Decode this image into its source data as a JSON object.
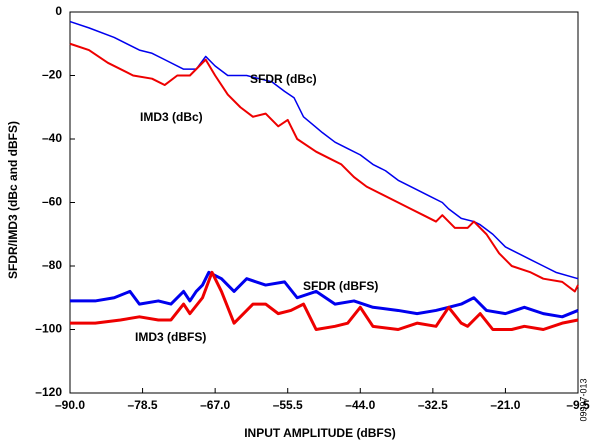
{
  "chart_data": {
    "type": "line",
    "xlabel": "INPUT AMPLITUDE (dBFS)",
    "ylabel": "SFDR/IMD3 (dBc and dBFS)",
    "figure_id": "09997-013",
    "xlim": [
      -90,
      -9.5
    ],
    "ylim": [
      -120,
      0
    ],
    "xticks": [
      {
        "value": -90,
        "label": "–90.0"
      },
      {
        "value": -78.5,
        "label": "–78.5"
      },
      {
        "value": -67,
        "label": "–67.0"
      },
      {
        "value": -55.5,
        "label": "–55.5"
      },
      {
        "value": -44,
        "label": "–44.0"
      },
      {
        "value": -32.5,
        "label": "–32.5"
      },
      {
        "value": -21,
        "label": "–21.0"
      },
      {
        "value": -9.5,
        "label": "–9.5"
      }
    ],
    "yticks": [
      {
        "value": -120,
        "label": "–120"
      },
      {
        "value": -100,
        "label": "–100"
      },
      {
        "value": -80,
        "label": "–80"
      },
      {
        "value": -60,
        "label": "–60"
      },
      {
        "value": -40,
        "label": "–40"
      },
      {
        "value": -20,
        "label": "–20"
      },
      0
    ],
    "grid": false,
    "series": [
      {
        "name": "SFDR (dBc)",
        "color": "#0000ee",
        "width": 1.5,
        "x": [
          -90,
          -87,
          -83,
          -79,
          -77,
          -75,
          -72,
          -70,
          -68.5,
          -67,
          -65,
          -62,
          -60,
          -58,
          -56,
          -54.5,
          -53,
          -50,
          -48,
          -46,
          -44,
          -42,
          -40,
          -38,
          -35,
          -33,
          -31,
          -30,
          -28,
          -26,
          -25,
          -23,
          -21,
          -19,
          -17,
          -15,
          -13,
          -9.5
        ],
        "values": [
          -3,
          -5,
          -8,
          -12,
          -13,
          -15,
          -18,
          -18,
          -14,
          -17,
          -20,
          -20,
          -21,
          -22,
          -25,
          -27,
          -33,
          -38,
          -41,
          -43,
          -45,
          -48,
          -50,
          -53,
          -56,
          -58,
          -60,
          -62,
          -65,
          -66,
          -67,
          -70,
          -74,
          -76,
          -78,
          -80,
          -82,
          -84
        ]
      },
      {
        "name": "IMD3 (dBc)",
        "color": "#ee0000",
        "width": 2,
        "x": [
          -90,
          -87,
          -84,
          -80,
          -77,
          -75,
          -73,
          -71,
          -68.5,
          -67,
          -65,
          -63,
          -61,
          -59,
          -57,
          -55.5,
          -54,
          -51,
          -49,
          -47,
          -45,
          -43,
          -41,
          -38,
          -36,
          -34,
          -32,
          -31,
          -29,
          -27,
          -26,
          -24,
          -22,
          -20,
          -17,
          -15,
          -12,
          -10,
          -9.5
        ],
        "values": [
          -10,
          -12,
          -16,
          -20,
          -21,
          -23,
          -20,
          -20,
          -15,
          -20,
          -26,
          -30,
          -33,
          -32,
          -36,
          -34,
          -40,
          -44,
          -46,
          -48,
          -52,
          -55,
          -57,
          -60,
          -62,
          -64,
          -66,
          -64,
          -68,
          -68,
          -66,
          -70,
          -76,
          -80,
          -82,
          -84,
          -85,
          -88,
          -86
        ]
      },
      {
        "name": "SFDR (dBFS)",
        "color": "#0000ee",
        "width": 3,
        "x": [
          -90,
          -86,
          -83,
          -80.5,
          -79,
          -76,
          -74,
          -72,
          -71,
          -70,
          -69,
          -68,
          -66,
          -64,
          -62,
          -59,
          -56,
          -54,
          -51,
          -48,
          -45,
          -42,
          -38,
          -35,
          -32,
          -30,
          -28,
          -26,
          -24,
          -21,
          -18,
          -15,
          -12,
          -9.5
        ],
        "values": [
          -91,
          -91,
          -90,
          -88,
          -92,
          -91,
          -92,
          -88,
          -91,
          -88,
          -86,
          -82,
          -84,
          -88,
          -84,
          -86,
          -85,
          -90,
          -88,
          -92,
          -91,
          -93,
          -94,
          -95,
          -94,
          -93,
          -92,
          -90,
          -94,
          -95,
          -93,
          -95,
          -96,
          -94
        ]
      },
      {
        "name": "IMD3 (dBFS)",
        "color": "#ee0000",
        "width": 3,
        "x": [
          -90,
          -86,
          -82,
          -79,
          -76,
          -74,
          -72,
          -71,
          -69,
          -67.5,
          -66,
          -64,
          -61,
          -59,
          -57,
          -55,
          -53,
          -51,
          -48,
          -46,
          -44,
          -42,
          -38,
          -35,
          -32,
          -30,
          -28,
          -27,
          -25,
          -23,
          -20,
          -18,
          -15,
          -12,
          -9.5
        ],
        "values": [
          -98,
          -98,
          -97,
          -96,
          -97,
          -97,
          -92,
          -95,
          -90,
          -82,
          -88,
          -98,
          -92,
          -92,
          -95,
          -94,
          -92,
          -100,
          -99,
          -98,
          -93,
          -99,
          -100,
          -98,
          -99,
          -93,
          -98,
          -99,
          -95,
          -100,
          -100,
          -99,
          -100,
          -98,
          -97
        ]
      }
    ]
  }
}
